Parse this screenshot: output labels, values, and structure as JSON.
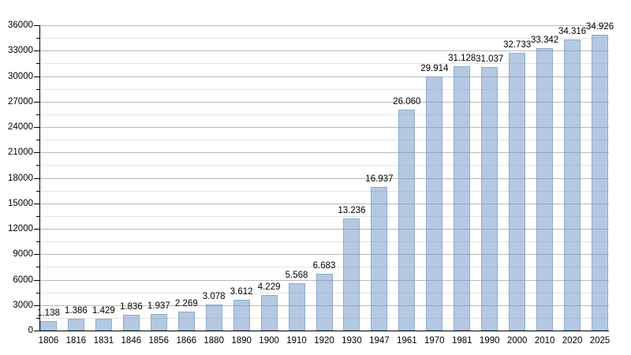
{
  "chart_data": {
    "type": "bar",
    "title": "",
    "xlabel": "",
    "ylabel": "",
    "categories": [
      "1806",
      "1816",
      "1831",
      "1846",
      "1856",
      "1866",
      "1880",
      "1890",
      "1900",
      "1910",
      "1920",
      "1930",
      "1947",
      "1961",
      "1970",
      "1981",
      "1990",
      "2000",
      "2010",
      "2020",
      "2025"
    ],
    "values": [
      1138,
      1386,
      1429,
      1836,
      1937,
      2269,
      3078,
      3612,
      4229,
      5568,
      6683,
      13236,
      16937,
      26060,
      29914,
      31128,
      31037,
      32733,
      33342,
      34316,
      34926
    ],
    "value_labels": [
      "1.138",
      "1.386",
      "1.429",
      "1.836",
      "1.937",
      "2.269",
      "3.078",
      "3.612",
      "4.229",
      "5.568",
      "6.683",
      "13.236",
      "16.937",
      "26.060",
      "29.914",
      "31.128",
      "31.037",
      "32.733",
      "33.342",
      "34.316",
      "34.926"
    ],
    "ylim": [
      0,
      36000
    ],
    "y_major_step": 3000,
    "y_minor_step": 1500,
    "y_tick_labels": [
      "0",
      "3000",
      "6000",
      "9000",
      "12000",
      "15000",
      "18000",
      "21000",
      "24000",
      "27000",
      "30000",
      "33000",
      "36000"
    ],
    "grid": true,
    "legend": "none",
    "colors": {
      "bar_fill": "#aec7e2",
      "bar_fill_rgba": "rgba(106, 148, 195, 0.5)",
      "bar_border": "#82a0c4",
      "grid_major": "#b9b9b9",
      "grid_minor": "#e4e4e4",
      "axis": "#000000",
      "text": "#000000",
      "background": "#ffffff"
    }
  }
}
